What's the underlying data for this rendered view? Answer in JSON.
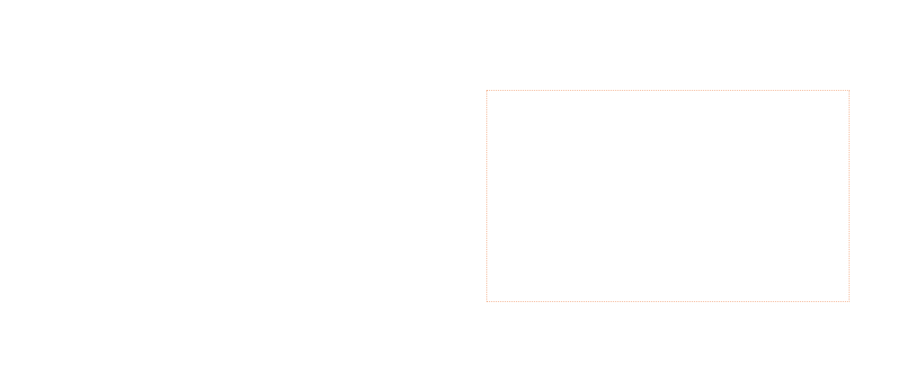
{
  "canvas": {
    "background_color": "#ffffff",
    "selection_outline": {
      "style": "dotted",
      "color": "#ec7a3c"
    }
  }
}
